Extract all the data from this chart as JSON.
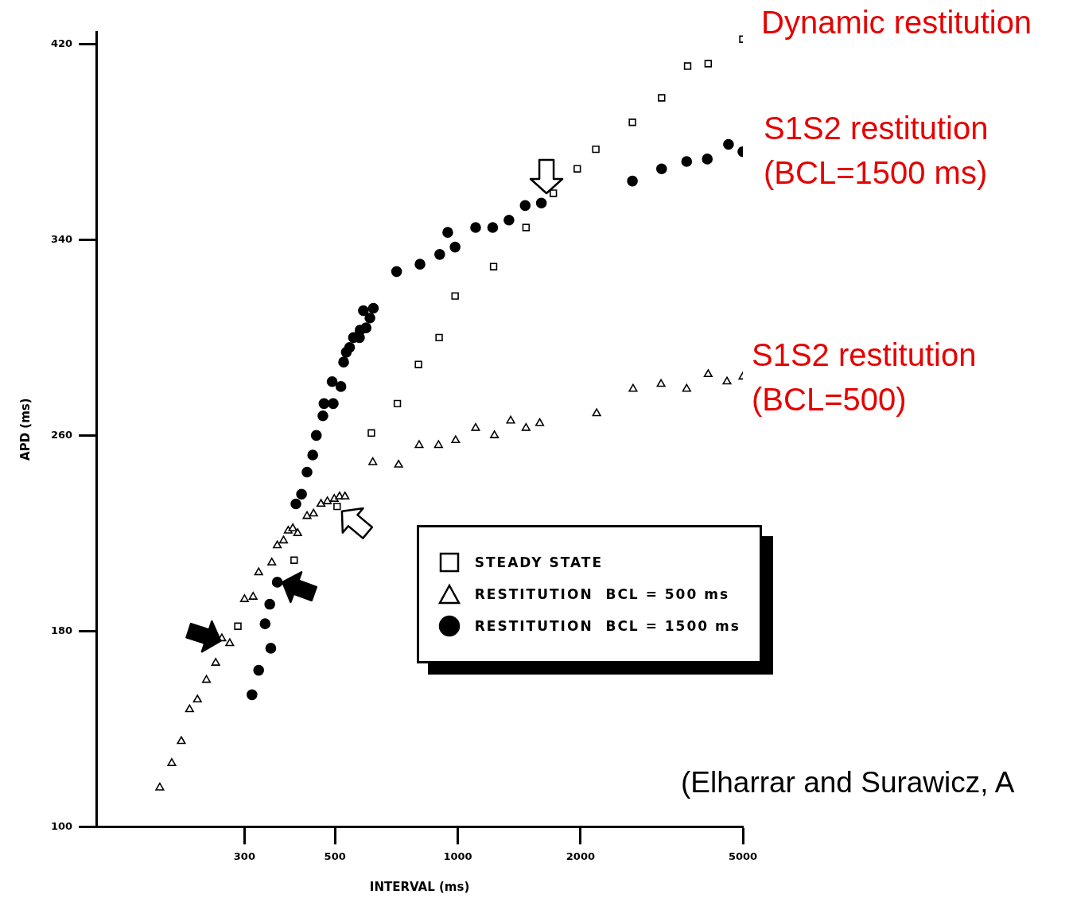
{
  "chart_data": {
    "type": "scatter",
    "xlabel": "INTERVAL (ms)",
    "ylabel": "APD (ms)",
    "log": "x",
    "xlim": [
      130,
      5000
    ],
    "xticks": [
      300,
      500,
      1000,
      2000,
      5000
    ],
    "ylim": [
      100,
      425
    ],
    "yticks": [
      100,
      180,
      260,
      340,
      420
    ],
    "grid": false,
    "legend": "right",
    "series": [
      {
        "name": "STEADY STATE",
        "color": "#000000",
        "marker": "square",
        "x": [
          289,
          397,
          506,
          614,
          711,
          801,
          900,
          985,
          1224,
          1470,
          1715,
          1963,
          2180,
          2680,
          3160,
          3660,
          4110,
          5000
        ],
        "values": [
          182,
          209,
          231,
          261,
          273,
          289,
          300,
          317,
          329,
          345,
          359,
          369,
          377,
          388,
          398,
          411,
          412,
          422
        ]
      },
      {
        "name": "RESTITUTION  BCL = 500 ms",
        "color": "#000000",
        "marker": "triangle",
        "x": [
          186,
          199,
          210,
          220,
          230,
          242,
          255,
          264,
          276,
          300,
          315,
          325,
          350,
          361,
          374,
          384,
          394,
          405,
          427,
          443,
          462,
          479,
          498,
          513,
          529,
          619,
          716,
          804,
          897,
          988,
          1106,
          1230,
          1348,
          1470,
          1588,
          2190,
          2690,
          3150,
          3640,
          4110,
          4570,
          5000
        ],
        "values": [
          116,
          126,
          135,
          148,
          152,
          160,
          167,
          177,
          175,
          193,
          194,
          204,
          208,
          215,
          217,
          221,
          222,
          220,
          227,
          228,
          232,
          233,
          234,
          235,
          235,
          249,
          248,
          256,
          256,
          258,
          263,
          260,
          266,
          263,
          265,
          269,
          279,
          281,
          279,
          285,
          282,
          284
        ]
      },
      {
        "name": "RESTITUTION  BCL = 1500 ms",
        "color": "#000000",
        "marker": "circle",
        "x": [
          313,
          325,
          348,
          337,
          346,
          361,
          390,
          401,
          414,
          427,
          441,
          450,
          467,
          470,
          495,
          492,
          517,
          525,
          533,
          543,
          555,
          574,
          576,
          596,
          587,
          621,
          609,
          708,
          808,
          903,
          985,
          945,
          1106,
          1218,
          1335,
          1463,
          1603,
          2680,
          3160,
          3640,
          4090,
          4610,
          5000
        ],
        "values": [
          154,
          164,
          173,
          183,
          191,
          200,
          null,
          232,
          236,
          245,
          252,
          260,
          268,
          273,
          273,
          282,
          280,
          290,
          294,
          296,
          300,
          300,
          303,
          304,
          311,
          312,
          308,
          327,
          330,
          334,
          337,
          343,
          345,
          345,
          348,
          354,
          355,
          364,
          369,
          372,
          373,
          379,
          376
        ]
      }
    ],
    "annotations": [
      "Dynamic restitution",
      "S1S2 restitution (BCL=1500 ms)",
      "S1S2 restitution (BCL=500)",
      "(Elharrar and Surawicz, A"
    ]
  }
}
